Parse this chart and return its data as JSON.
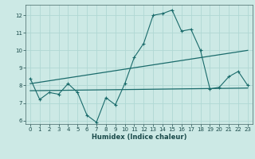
{
  "title": "",
  "xlabel": "Humidex (Indice chaleur)",
  "background_color": "#cce9e5",
  "grid_color": "#b0d8d4",
  "line_color": "#1a6b6b",
  "xlim": [
    -0.5,
    23.5
  ],
  "ylim": [
    5.8,
    12.6
  ],
  "yticks": [
    6,
    7,
    8,
    9,
    10,
    11,
    12
  ],
  "xticks": [
    0,
    1,
    2,
    3,
    4,
    5,
    6,
    7,
    8,
    9,
    10,
    11,
    12,
    13,
    14,
    15,
    16,
    17,
    18,
    19,
    20,
    21,
    22,
    23
  ],
  "line1_x": [
    0,
    1,
    2,
    3,
    4,
    5,
    6,
    7,
    8,
    9,
    10,
    11,
    12,
    13,
    14,
    15,
    16,
    17,
    18,
    19,
    20,
    21,
    22,
    23
  ],
  "line1_y": [
    8.4,
    7.2,
    7.6,
    7.5,
    8.1,
    7.6,
    6.3,
    5.9,
    7.3,
    6.9,
    8.1,
    9.6,
    10.4,
    12.0,
    12.1,
    12.3,
    11.1,
    11.2,
    10.0,
    7.8,
    7.9,
    8.5,
    8.8,
    8.0
  ],
  "line2_x": [
    0,
    23
  ],
  "line2_y": [
    7.7,
    7.85
  ],
  "line3_x": [
    0,
    23
  ],
  "line3_y": [
    8.1,
    10.0
  ]
}
